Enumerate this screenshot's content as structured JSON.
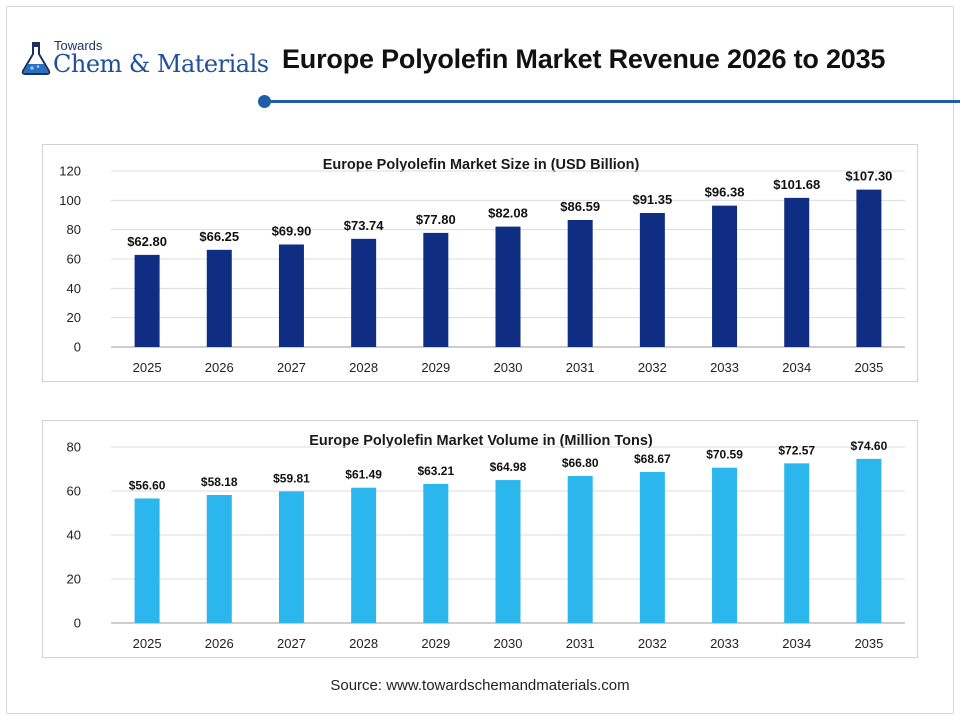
{
  "header": {
    "logo_small": "Towards",
    "logo_big": "Chem & Materials",
    "title": "Europe Polyolefin Market Revenue 2026 to 2035"
  },
  "colors": {
    "accent": "#1f5da8",
    "series1": "#0f2d82",
    "series2": "#2bb6ee"
  },
  "chart_data": [
    {
      "type": "bar",
      "title": "Europe Polyolefin Market Size in (USD Billion)",
      "categories": [
        "2025",
        "2026",
        "2027",
        "2028",
        "2029",
        "2030",
        "2031",
        "2032",
        "2033",
        "2034",
        "2035"
      ],
      "values": [
        62.8,
        66.25,
        69.9,
        73.74,
        77.8,
        82.08,
        86.59,
        91.35,
        96.38,
        101.68,
        107.3
      ],
      "data_labels": [
        "$62.80",
        "$66.25",
        "$69.90",
        "$73.74",
        "$77.80",
        "$82.08",
        "$86.59",
        "$91.35",
        "$96.38",
        "$101.68",
        "$107.30"
      ],
      "yticks": [
        "0",
        "20",
        "40",
        "60",
        "80",
        "100",
        "120"
      ],
      "ylim": [
        0,
        120
      ],
      "grid": true,
      "legend": "none"
    },
    {
      "type": "bar",
      "title": "Europe Polyolefin Market Volume in (Million Tons)",
      "categories": [
        "2025",
        "2026",
        "2027",
        "2028",
        "2029",
        "2030",
        "2031",
        "2032",
        "2033",
        "2034",
        "2035"
      ],
      "values": [
        56.6,
        58.18,
        59.81,
        61.49,
        63.21,
        64.98,
        66.8,
        68.67,
        70.59,
        72.57,
        74.6
      ],
      "data_labels": [
        "$56.60",
        "$58.18",
        "$59.81",
        "$61.49",
        "$63.21",
        "$64.98",
        "$66.80",
        "$68.67",
        "$70.59",
        "$72.57",
        "$74.60"
      ],
      "yticks": [
        "0",
        "20",
        "40",
        "60",
        "80"
      ],
      "ylim": [
        0,
        80
      ],
      "grid": true,
      "legend": "none"
    }
  ],
  "footer": {
    "source": "Source: www.towardschemandmaterials.com"
  }
}
